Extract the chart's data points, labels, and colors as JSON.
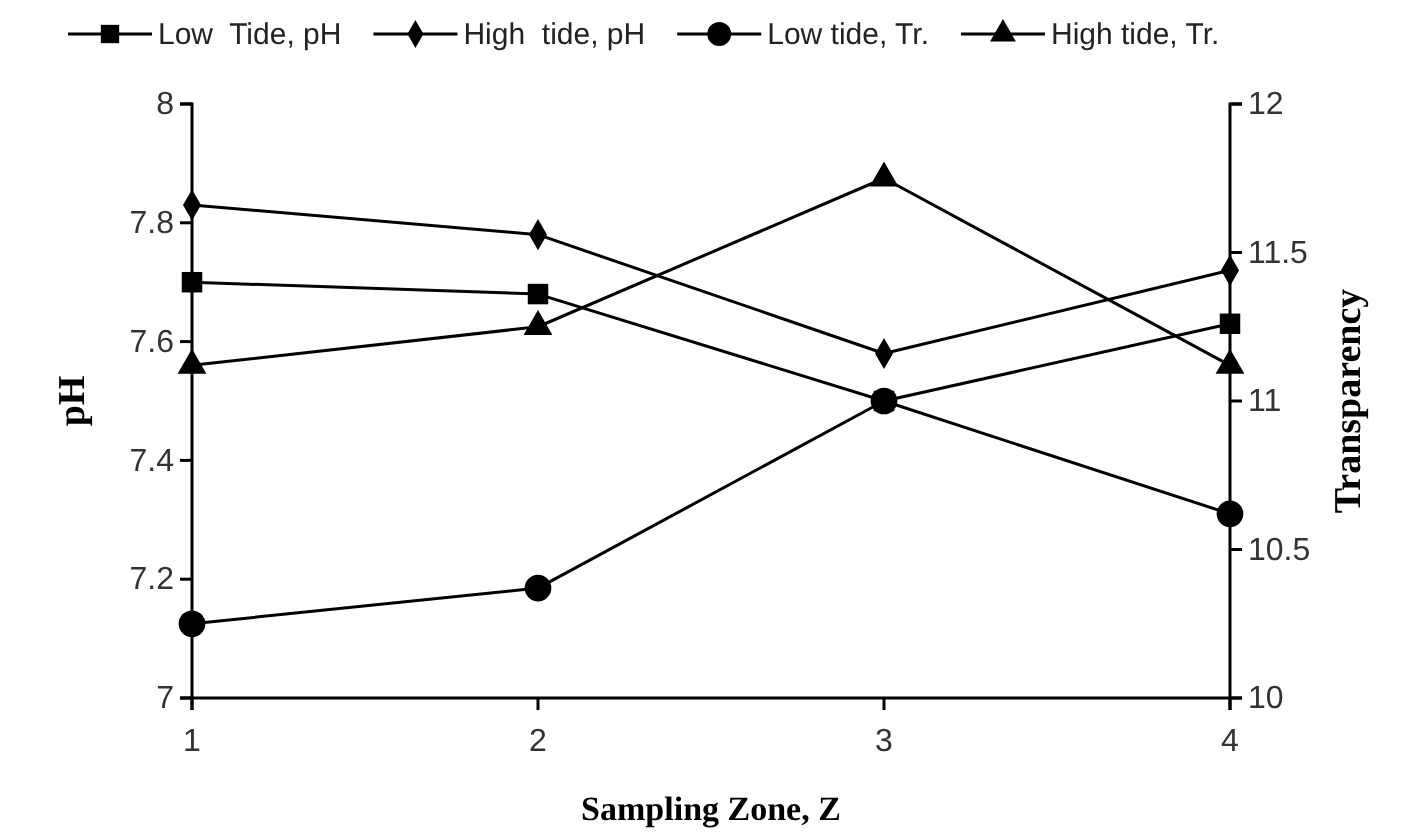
{
  "chart_data": {
    "type": "line",
    "xlabel": "Sampling Zone, Z",
    "ylabel": "pH",
    "y2label": "Transparency",
    "x": [
      1,
      2,
      3,
      4
    ],
    "xlim": [
      1,
      4
    ],
    "xticks": [
      1,
      2,
      3,
      4
    ],
    "ylim": [
      7,
      8
    ],
    "yticks": [
      7,
      7.2,
      7.4,
      7.6,
      7.8,
      8
    ],
    "y2lim": [
      10,
      12
    ],
    "y2ticks": [
      10,
      10.5,
      11,
      11.5,
      12
    ],
    "legend": "top",
    "grid": false,
    "line_style": "solid",
    "series": [
      {
        "name": "Low  Tide, pH",
        "color": "#000000",
        "marker": "square",
        "values": [
          7.7,
          7.68,
          7.5,
          7.63
        ]
      },
      {
        "name": "High  tide, pH",
        "color": "#000000",
        "marker": "diamond",
        "values": [
          7.83,
          7.78,
          7.58,
          7.72
        ]
      },
      {
        "name": "Low tide, Tr.",
        "color": "#000000",
        "marker": "circle",
        "axis": "y2",
        "values": [
          10.25,
          10.37,
          11.0,
          10.62
        ]
      },
      {
        "name": "High tide, Tr.",
        "color": "#000000",
        "marker": "triangle",
        "axis": "y2",
        "values": [
          11.12,
          11.25,
          11.75,
          11.12
        ]
      }
    ]
  }
}
